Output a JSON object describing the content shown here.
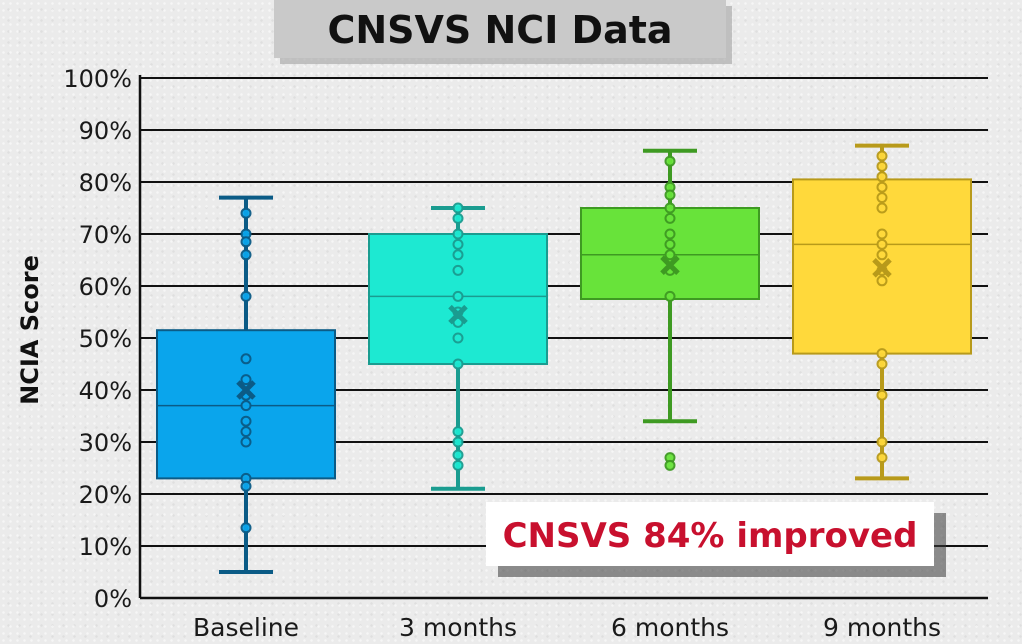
{
  "chart_data": {
    "type": "box",
    "title": "CNSVS NCI Data",
    "ylabel": "NCIA Score",
    "xlabel": "",
    "ylim": [
      0,
      100
    ],
    "yticks": [
      0,
      10,
      20,
      30,
      40,
      50,
      60,
      70,
      80,
      90,
      100
    ],
    "ytick_suffix": "%",
    "grid": true,
    "annotation": "CNSVS 84% improved",
    "series": [
      {
        "category": "Baseline",
        "color": "#0aa5ec",
        "dark": "#0b5b86",
        "min": 5,
        "q1": 23,
        "median": 37,
        "q3": 51.5,
        "max": 77,
        "mean": 40,
        "points": [
          74,
          70,
          68.5,
          66,
          58,
          46,
          42,
          39,
          37,
          34,
          32,
          30,
          23,
          21.5,
          13.5
        ]
      },
      {
        "category": "3 months",
        "color": "#1de9d2",
        "dark": "#1a9c90",
        "min": 21,
        "q1": 45,
        "median": 58,
        "q3": 70,
        "max": 75,
        "mean": 54.5,
        "points": [
          75,
          73,
          70,
          68,
          66,
          63,
          58,
          55,
          53,
          50,
          45,
          32,
          30,
          27.5,
          25.5
        ]
      },
      {
        "category": "6 months",
        "color": "#68e33a",
        "dark": "#3e9a22",
        "min": 34,
        "q1": 57.5,
        "median": 66,
        "q3": 75,
        "max": 86,
        "mean": 64,
        "points": [
          84,
          79,
          77.5,
          75,
          73,
          70,
          68,
          66,
          63,
          58,
          27,
          25.5
        ]
      },
      {
        "category": "9 months",
        "color": "#ffd93b",
        "dark": "#b89a1a",
        "min": 23,
        "q1": 47,
        "median": 68,
        "q3": 80.5,
        "max": 87,
        "mean": 63.5,
        "points": [
          85,
          83,
          81,
          79,
          77,
          75,
          70,
          68,
          66,
          63,
          61,
          47,
          45,
          39,
          30,
          27
        ]
      }
    ]
  }
}
